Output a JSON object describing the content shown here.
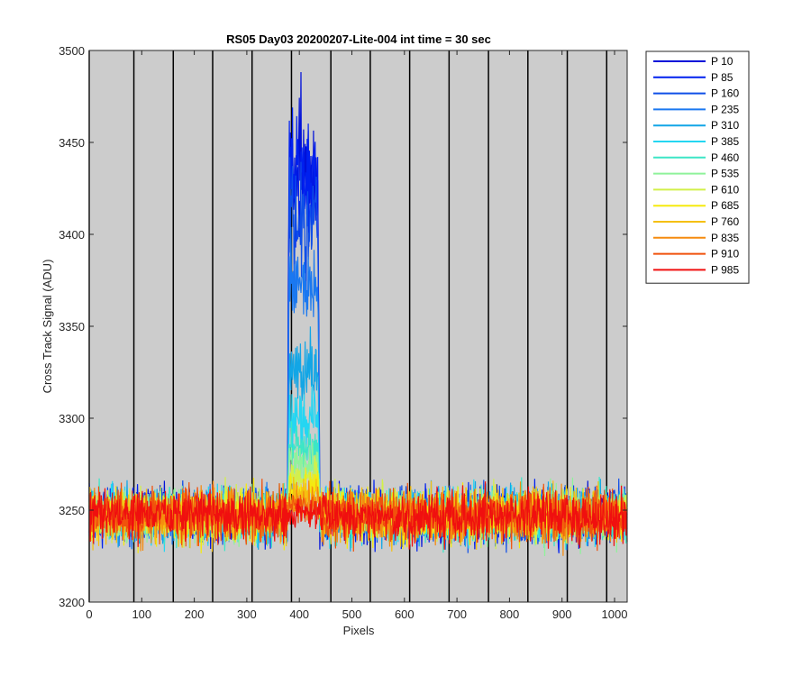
{
  "chart_data": {
    "type": "line",
    "title": "RS05 Day03 20200207-Lite-004 int time = 30 sec",
    "xlabel": "Pixels",
    "ylabel": "Cross Track Signal (ADU)",
    "xlim": [
      0,
      1024
    ],
    "ylim": [
      3200,
      3500
    ],
    "xticks": [
      0,
      100,
      200,
      300,
      400,
      500,
      600,
      700,
      800,
      900,
      1000
    ],
    "yticks": [
      3200,
      3250,
      3300,
      3350,
      3400,
      3450,
      3500
    ],
    "background": "#cccccc",
    "grid": false,
    "vertical_lines": [
      0,
      85,
      160,
      235,
      310,
      385,
      460,
      535,
      610,
      685,
      760,
      835,
      910,
      985
    ],
    "legend_position": "outside-top-right",
    "baseline": 3247,
    "noise_amplitude": 10,
    "peak": {
      "x_start": 378,
      "x_end": 438
    },
    "series": [
      {
        "name": "P 10",
        "color": "#0010d9",
        "peak_level": 3435
      },
      {
        "name": "P 85",
        "color": "#0020ef",
        "peak_level": 3428
      },
      {
        "name": "P 160",
        "color": "#0f4fe8",
        "peak_level": 3408
      },
      {
        "name": "P 235",
        "color": "#1a78f0",
        "peak_level": 3370
      },
      {
        "name": "P 310",
        "color": "#12a6e6",
        "peak_level": 3325
      },
      {
        "name": "P 385",
        "color": "#24d6f2",
        "peak_level": 3300
      },
      {
        "name": "P 460",
        "color": "#3de6c6",
        "peak_level": 3285
      },
      {
        "name": "P 535",
        "color": "#8ff29a",
        "peak_level": 3275
      },
      {
        "name": "P 610",
        "color": "#d2f04a",
        "peak_level": 3268
      },
      {
        "name": "P 685",
        "color": "#f5ea0f",
        "peak_level": 3262
      },
      {
        "name": "P 760",
        "color": "#f5c010",
        "peak_level": 3258
      },
      {
        "name": "P 835",
        "color": "#f58b0f",
        "peak_level": 3254
      },
      {
        "name": "P 910",
        "color": "#f0520c",
        "peak_level": 3251
      },
      {
        "name": "P 985",
        "color": "#f00f0f",
        "peak_level": 3248
      }
    ]
  }
}
